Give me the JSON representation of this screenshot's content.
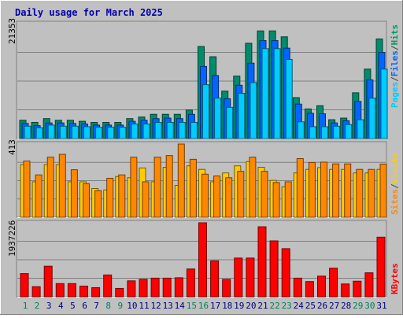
{
  "chart_data": [
    {
      "type": "bar",
      "title": "Daily usage for March 2025",
      "max_label": "21353",
      "ylabel_parts": [
        "Pages",
        "/",
        "Files",
        "/",
        "Hits"
      ],
      "ylabel_colors": [
        "#00ccff",
        "#444444",
        "#0066ff",
        "#444444",
        "#009966"
      ],
      "colors": {
        "hits": "#008b6b",
        "files": "#0066ff",
        "pages": "#00ccff",
        "background": "#c0c0c0"
      },
      "series": [
        {
          "name": "Hits",
          "values": [
            3400,
            3000,
            3700,
            3400,
            3400,
            3200,
            3000,
            3000,
            3000,
            3700,
            4000,
            4500,
            4500,
            4500,
            5300,
            17100,
            15200,
            8800,
            11600,
            17700,
            20000,
            20000,
            18900,
            7600,
            5500,
            6100,
            3500,
            3800,
            8500,
            12900,
            18500
          ]
        },
        {
          "name": "Files",
          "values": [
            2800,
            2400,
            2900,
            2900,
            2800,
            2700,
            2500,
            2500,
            2500,
            3200,
            3400,
            3700,
            3800,
            3700,
            4500,
            13400,
            11700,
            7400,
            9900,
            14000,
            18200,
            18200,
            16800,
            6400,
            4700,
            4600,
            2900,
            3300,
            6900,
            10900,
            16000
          ]
        },
        {
          "name": "Pages",
          "values": [
            2300,
            2000,
            2500,
            2300,
            2300,
            2200,
            2100,
            2100,
            2100,
            2700,
            2700,
            3000,
            3000,
            3000,
            3000,
            10000,
            7500,
            5800,
            8400,
            10400,
            16700,
            16700,
            14700,
            3100,
            2200,
            2200,
            2300,
            2600,
            3500,
            7500,
            12900
          ]
        }
      ],
      "categories": [
        "1",
        "2",
        "3",
        "4",
        "5",
        "6",
        "7",
        "8",
        "9",
        "10",
        "11",
        "12",
        "13",
        "14",
        "15",
        "16",
        "17",
        "18",
        "19",
        "20",
        "21",
        "22",
        "23",
        "24",
        "25",
        "26",
        "27",
        "28",
        "29",
        "30",
        "31"
      ],
      "ylim": [
        0,
        21353
      ]
    },
    {
      "type": "bar",
      "max_label": "413",
      "ylabel_parts": [
        "Sites",
        "/",
        "Visits"
      ],
      "ylabel_colors": [
        "#ff8800",
        "#444444",
        "#ffcc00"
      ],
      "colors": {
        "visits": "#ffcc00",
        "sites": "#ff8800"
      },
      "series": [
        {
          "name": "Visits",
          "values": [
            297,
            200,
            297,
            297,
            200,
            200,
            162,
            154,
            230,
            223,
            278,
            200,
            282,
            180,
            290,
            270,
            200,
            250,
            290,
            314,
            282,
            208,
            172,
            250,
            270,
            280,
            270,
            270,
            250,
            250,
            270
          ]
        },
        {
          "name": "Sites",
          "values": [
            317,
            239,
            339,
            355,
            268,
            190,
            150,
            220,
            239,
            339,
            200,
            339,
            348,
            413,
            327,
            243,
            233,
            223,
            259,
            339,
            259,
            196,
            200,
            331,
            309,
            311,
            301,
            301,
            270,
            270,
            300
          ]
        }
      ],
      "categories": [
        "1",
        "2",
        "3",
        "4",
        "5",
        "6",
        "7",
        "8",
        "9",
        "10",
        "11",
        "12",
        "13",
        "14",
        "15",
        "16",
        "17",
        "18",
        "19",
        "20",
        "21",
        "22",
        "23",
        "24",
        "25",
        "26",
        "27",
        "28",
        "29",
        "30",
        "31"
      ],
      "ylim": [
        0,
        413
      ]
    },
    {
      "type": "bar",
      "max_label": "1937226",
      "ylabel_parts": [
        "KBytes"
      ],
      "ylabel_colors": [
        "#ff0000"
      ],
      "colors": {
        "kbytes": "#ff0000"
      },
      "series": [
        {
          "name": "KBytes",
          "values": [
            606000,
            264000,
            800000,
            344000,
            344000,
            279000,
            238000,
            571000,
            218000,
            416000,
            457000,
            487000,
            487000,
            497000,
            727000,
            1937226,
            940000,
            454000,
            1013000,
            1013000,
            1832000,
            1463000,
            1259000,
            487000,
            398000,
            540000,
            748000,
            335000,
            407000,
            627000,
            1560000
          ]
        }
      ],
      "categories": [
        "1",
        "2",
        "3",
        "4",
        "5",
        "6",
        "7",
        "8",
        "9",
        "10",
        "11",
        "12",
        "13",
        "14",
        "15",
        "16",
        "17",
        "18",
        "19",
        "20",
        "21",
        "22",
        "23",
        "24",
        "25",
        "26",
        "27",
        "28",
        "29",
        "30",
        "31"
      ],
      "ylim": [
        0,
        1937226
      ]
    }
  ],
  "day_label_colors": {
    "weekday": "#000080",
    "weekend": "#00805a"
  },
  "weekend_days": [
    "1",
    "2",
    "8",
    "9",
    "15",
    "16",
    "22",
    "23",
    "29",
    "30"
  ]
}
